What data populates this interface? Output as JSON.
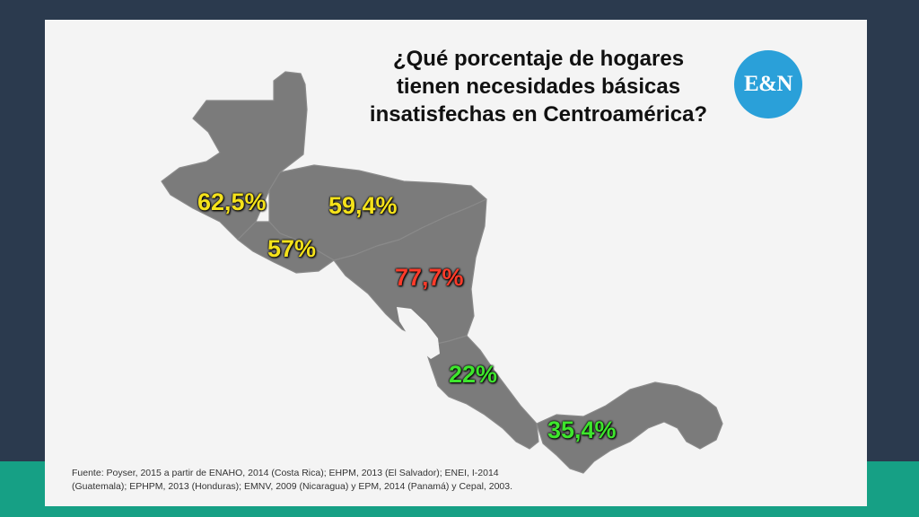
{
  "title_lines": [
    "¿Qué porcentaje de hogares",
    "tienen necesidades básicas",
    "insatisfechas en Centroamérica?"
  ],
  "logo": "E&N",
  "map_labels": {
    "guatemala": "62,5%",
    "honduras": "59,4%",
    "el_salvador": "57%",
    "nicaragua": "77,7%",
    "costa_rica": "22%",
    "panama": "35,4%"
  },
  "label_colors": {
    "yellow": "#f5e21b",
    "red": "#ff3b2a",
    "green": "#3ee52d"
  },
  "map_color": "#7b7b7b",
  "footnote_lines": [
    "Fuente: Poyser, 2015 a partir de ENAHO, 2014 (Costa Rica); EHPM, 2013 (El Salvador); ENEI, I-2014",
    "(Guatemala); EPHPM, 2013 (Honduras); EMNV, 2009 (Nicaragua) y EPM, 2014 (Panamá) y Cepal, 2003."
  ]
}
